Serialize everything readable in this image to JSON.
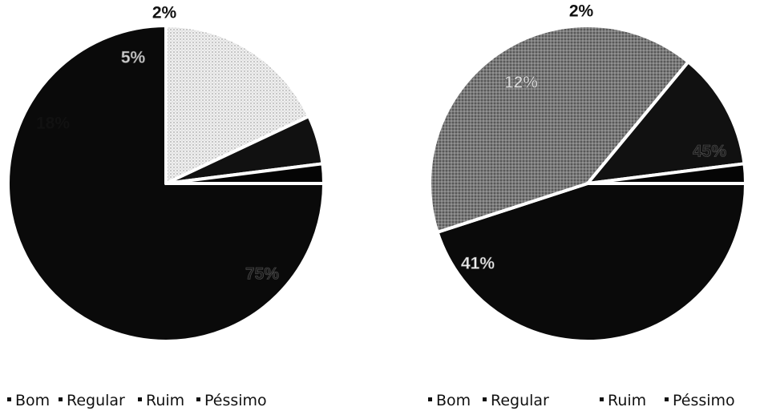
{
  "chart_data": [
    {
      "type": "pie",
      "categories": [
        "Bom",
        "Regular",
        "Ruim",
        "Péssimo"
      ],
      "values": [
        75,
        18,
        5,
        2
      ],
      "data_labels": [
        "75%",
        "18%",
        "5%",
        "2%"
      ],
      "colors": [
        "#0a0a0a",
        "#e9e9e9",
        "#111111",
        "#050505"
      ],
      "label_colors": [
        "#1c1c1c",
        "#111111",
        "#cfcfcf",
        "#111111"
      ],
      "legend": {
        "position": "bottom",
        "entries": [
          "Bom",
          "Regular",
          "Ruim",
          "Péssimo"
        ]
      }
    },
    {
      "type": "pie",
      "categories": [
        "Bom",
        "Regular",
        "Ruim",
        "Péssimo"
      ],
      "values": [
        45,
        41,
        12,
        2
      ],
      "data_labels": [
        "45%",
        "41%",
        "12%",
        "2%"
      ],
      "colors": [
        "#0a0a0a",
        "#6e6e6e",
        "#111111",
        "#050505"
      ],
      "label_colors": [
        "#1c1c1c",
        "#ededed",
        "#d8d8d8",
        "#111111"
      ],
      "legend": {
        "position": "bottom",
        "entries": [
          "Bom",
          "Regular",
          "Ruim",
          "Péssimo"
        ]
      }
    }
  ]
}
